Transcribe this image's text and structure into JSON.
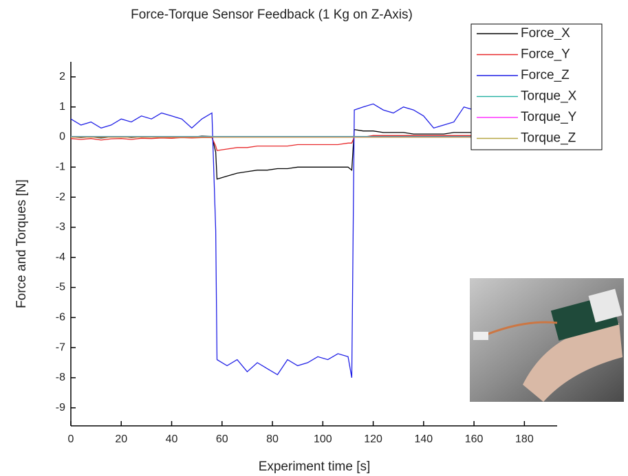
{
  "chart_data": {
    "type": "line",
    "title": "Force-Torque Sensor Feedback (1 Kg on Z-Axis)",
    "x_label": "Experiment time [s]",
    "y_label": "Force and Torques [N]",
    "x": [
      0,
      4,
      8,
      12,
      16,
      20,
      24,
      28,
      32,
      36,
      40,
      44,
      48,
      52,
      56,
      57.5,
      58,
      62,
      66,
      70,
      74,
      78,
      82,
      86,
      90,
      94,
      98,
      102,
      106,
      110,
      111.5,
      112.5,
      116,
      120,
      124,
      128,
      132,
      136,
      140,
      144,
      148,
      152,
      156,
      160
    ],
    "series": [
      {
        "name": "Force_X",
        "color": "#000000",
        "values": [
          0.0,
          -0.02,
          0.0,
          -0.03,
          0.0,
          0.01,
          -0.02,
          0.0,
          0.02,
          0.0,
          0.01,
          0.02,
          0.0,
          0.03,
          0.02,
          -0.5,
          -1.4,
          -1.3,
          -1.2,
          -1.15,
          -1.1,
          -1.1,
          -1.05,
          -1.05,
          -1.0,
          -1.0,
          -1.0,
          -1.0,
          -1.0,
          -1.0,
          -1.1,
          0.25,
          0.2,
          0.2,
          0.15,
          0.15,
          0.15,
          0.1,
          0.1,
          0.1,
          0.1,
          0.15,
          0.15,
          0.15
        ]
      },
      {
        "name": "Force_Y",
        "color": "#e8282a",
        "values": [
          -0.05,
          -0.08,
          -0.05,
          -0.1,
          -0.06,
          -0.05,
          -0.08,
          -0.04,
          -0.05,
          -0.03,
          -0.04,
          -0.02,
          -0.03,
          -0.02,
          -0.02,
          -0.3,
          -0.45,
          -0.4,
          -0.35,
          -0.35,
          -0.3,
          -0.3,
          -0.3,
          -0.3,
          -0.25,
          -0.25,
          -0.25,
          -0.25,
          -0.25,
          -0.2,
          -0.2,
          0.0,
          0.0,
          0.05,
          0.05,
          0.05,
          0.05,
          0.05,
          0.05,
          0.05,
          0.05,
          0.05,
          0.05,
          0.05
        ]
      },
      {
        "name": "Force_Z",
        "color": "#1f1fe6",
        "values": [
          0.6,
          0.4,
          0.5,
          0.3,
          0.4,
          0.6,
          0.5,
          0.7,
          0.6,
          0.8,
          0.7,
          0.6,
          0.3,
          0.6,
          0.8,
          -3.1,
          -7.4,
          -7.6,
          -7.4,
          -7.8,
          -7.5,
          -7.7,
          -7.9,
          -7.4,
          -7.6,
          -7.5,
          -7.3,
          -7.4,
          -7.2,
          -7.3,
          -8.0,
          0.9,
          1.0,
          1.1,
          0.9,
          0.8,
          1.0,
          0.9,
          0.7,
          0.3,
          0.4,
          0.5,
          1.0,
          0.9
        ]
      },
      {
        "name": "Torque_X",
        "color": "#2ab3a5",
        "values": [
          0.02,
          0.02,
          0.02,
          0.02,
          0.02,
          0.02,
          0.02,
          0.02,
          0.02,
          0.02,
          0.02,
          0.02,
          0.02,
          0.02,
          0.02,
          0.02,
          0.02,
          0.02,
          0.02,
          0.02,
          0.02,
          0.02,
          0.02,
          0.02,
          0.02,
          0.02,
          0.02,
          0.02,
          0.02,
          0.02,
          0.02,
          0.02,
          0.02,
          0.02,
          0.02,
          0.02,
          0.02,
          0.02,
          0.02,
          0.02,
          0.02,
          0.02,
          0.02,
          0.02
        ]
      },
      {
        "name": "Torque_Y",
        "color": "#ff33ff",
        "values": [
          0,
          0,
          0,
          0,
          0,
          0,
          0,
          0,
          0,
          0,
          0,
          0,
          0,
          0,
          0,
          0,
          0,
          0,
          0,
          0,
          0,
          0,
          0,
          0,
          0,
          0,
          0,
          0,
          0,
          0,
          0,
          0,
          0,
          0,
          0,
          0,
          0,
          0,
          0,
          0,
          0,
          0,
          0,
          0
        ]
      },
      {
        "name": "Torque_Z",
        "color": "#b5a642",
        "values": [
          -0.01,
          -0.01,
          -0.01,
          -0.01,
          -0.01,
          -0.01,
          -0.01,
          -0.01,
          -0.01,
          -0.01,
          -0.01,
          -0.01,
          -0.01,
          -0.01,
          -0.01,
          -0.01,
          -0.01,
          -0.01,
          -0.01,
          -0.01,
          -0.01,
          -0.01,
          -0.01,
          -0.01,
          -0.01,
          -0.01,
          -0.01,
          -0.01,
          -0.01,
          -0.01,
          -0.01,
          -0.01,
          -0.01,
          -0.01,
          -0.01,
          -0.01,
          -0.01,
          -0.01,
          -0.01,
          -0.01,
          -0.01,
          -0.01,
          -0.01,
          -0.01
        ]
      }
    ],
    "xlim": [
      0,
      193
    ],
    "xticks": [
      0,
      20,
      40,
      60,
      80,
      100,
      120,
      140,
      160,
      180
    ],
    "ylim": [
      -9.6,
      2.5
    ],
    "yticks": [
      -9,
      -8,
      -7,
      -6,
      -5,
      -4,
      -3,
      -2,
      -1,
      0,
      1,
      2
    ],
    "legend": "upper right",
    "grid": false
  }
}
